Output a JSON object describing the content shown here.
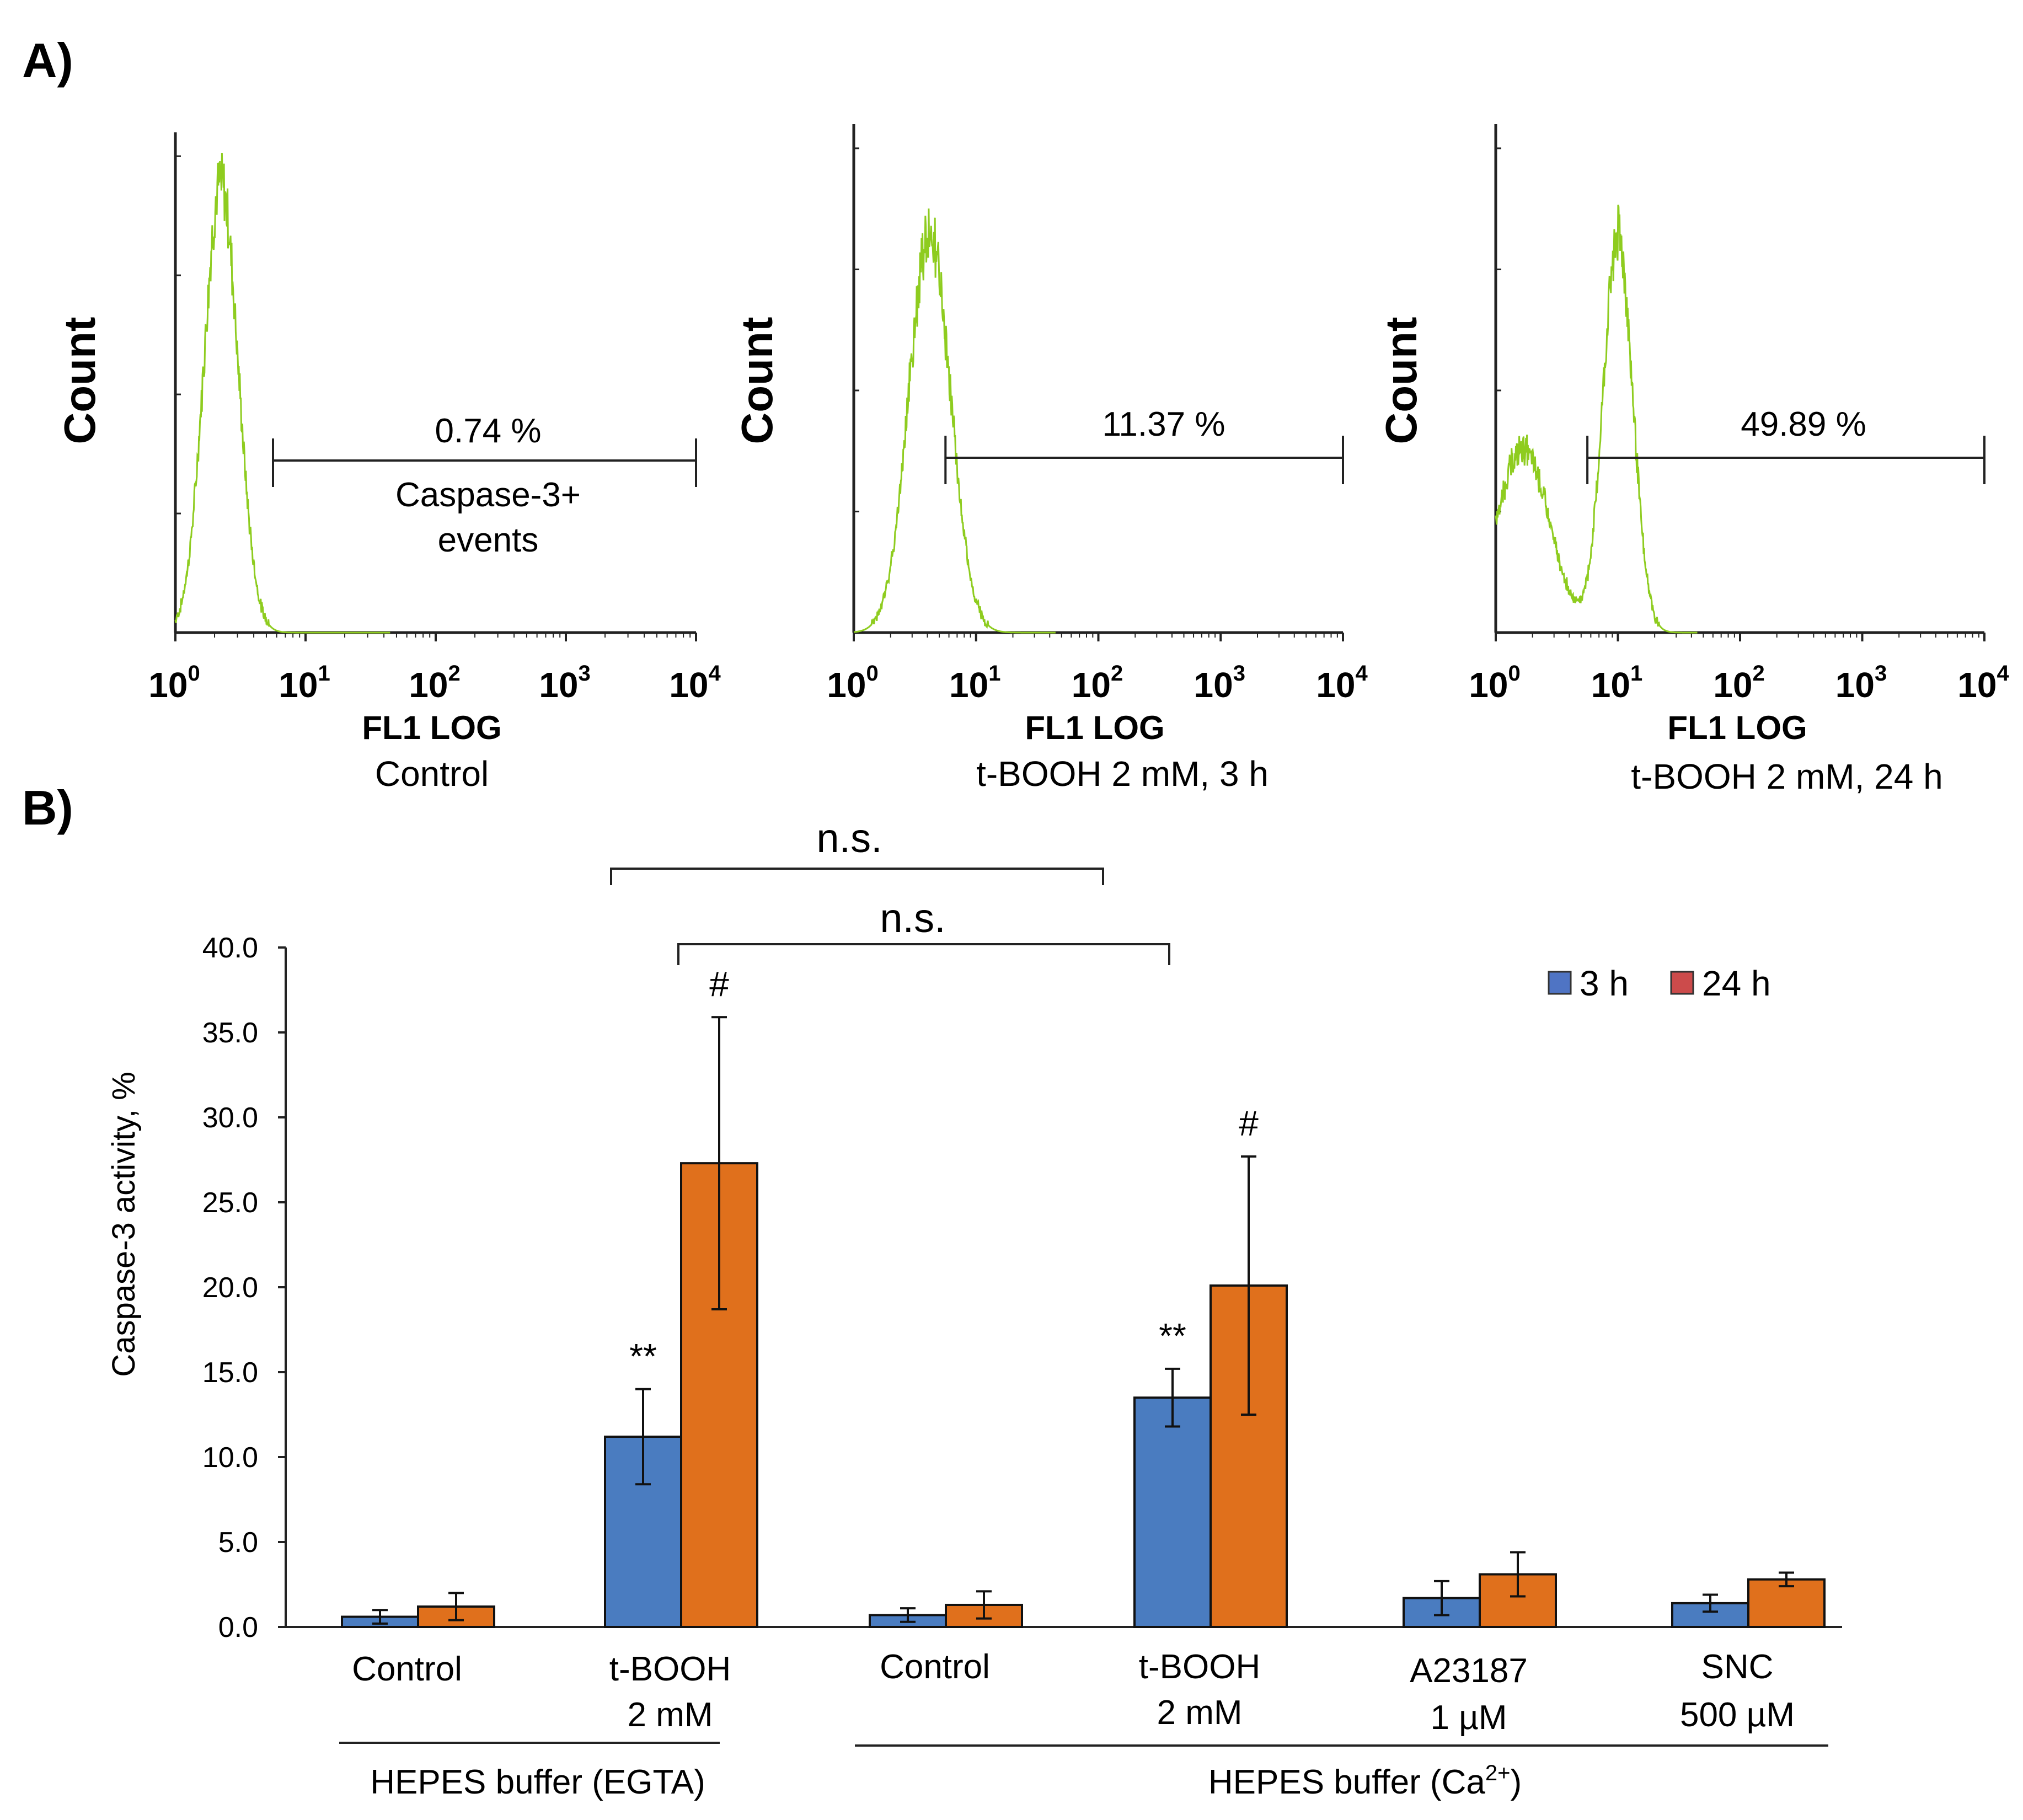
{
  "panel_a": {
    "label": "A)",
    "histograms": [
      {
        "ylabel": "Count",
        "xlabel": "FL1 LOG",
        "condition": "Control",
        "gate_percent": "0.74 %",
        "gate_label_line1": "Caspase-3+",
        "gate_label_line2": "events",
        "gate_range_log": [
          0.75,
          4.0
        ],
        "peaks": [
          {
            "center": 0.35,
            "width": 0.13,
            "height": 0.9
          }
        ]
      },
      {
        "ylabel": "Count",
        "xlabel": "FL1 LOG",
        "condition": "t-BOOH 2 mM, 3 h",
        "gate_percent": "11.37 %",
        "gate_range_log": [
          0.75,
          4.0
        ],
        "peaks": [
          {
            "center": 0.62,
            "width": 0.17,
            "height": 0.78
          }
        ]
      },
      {
        "ylabel": "Count",
        "xlabel": "FL1 LOG",
        "condition": "t-BOOH 2 mM, 24 h",
        "gate_percent": "49.89 %",
        "gate_range_log": [
          0.75,
          4.0
        ],
        "peaks": [
          {
            "center": 0.22,
            "width": 0.22,
            "height": 0.36
          },
          {
            "center": 1.0,
            "width": 0.12,
            "height": 0.78
          }
        ]
      }
    ],
    "x_ticks": [
      "0",
      "1",
      "2",
      "3",
      "4"
    ],
    "tick_base": "10",
    "histogram_color": "#8ecc1f"
  },
  "panel_b": {
    "label": "B)",
    "ns_labels": [
      "n.s.",
      "n.s."
    ],
    "group_labels": [
      "HEPES buffer (EGTA)"
    ],
    "group_label_ca": {
      "prefix": "HEPES buffer (Ca",
      "sup": "2+",
      "suffix": ")"
    }
  },
  "chart_data": {
    "type": "bar",
    "title": "",
    "xlabel": "",
    "ylabel": "Caspase-3 activity, %",
    "ylim": [
      0,
      40
    ],
    "yticks": [
      "0.0",
      "5.0",
      "10.0",
      "15.0",
      "20.0",
      "25.0",
      "30.0",
      "35.0",
      "40.0"
    ],
    "grid": false,
    "legend_position": "top-right",
    "categories": [
      {
        "line1": "Control",
        "line2": ""
      },
      {
        "line1": "t-BOOH",
        "line2": "2 mM"
      },
      {
        "line1": "Control",
        "line2": ""
      },
      {
        "line1": "t-BOOH",
        "line2": "2 mM"
      },
      {
        "line1": "A23187",
        "line2": "1 µM"
      },
      {
        "line1": "SNC",
        "line2": "500 µM"
      }
    ],
    "series": [
      {
        "name": "3 h",
        "color": "#4a7cc0",
        "legend_color": "#4f74c4",
        "values": [
          0.6,
          11.2,
          0.7,
          13.5,
          1.7,
          1.4
        ],
        "errors": [
          0.4,
          2.8,
          0.4,
          1.7,
          1.0,
          0.5
        ]
      },
      {
        "name": "24 h",
        "color": "#e0701c",
        "legend_color": "#cc4b4b",
        "values": [
          1.2,
          27.3,
          1.3,
          20.1,
          3.1,
          2.8
        ],
        "errors": [
          0.8,
          8.6,
          0.8,
          7.6,
          1.3,
          0.4
        ]
      }
    ],
    "annotations": [
      {
        "text": "**",
        "category": 1,
        "series": 0
      },
      {
        "text": "#",
        "category": 1,
        "series": 1
      },
      {
        "text": "**",
        "category": 3,
        "series": 0
      },
      {
        "text": "#",
        "category": 3,
        "series": 1
      }
    ]
  }
}
